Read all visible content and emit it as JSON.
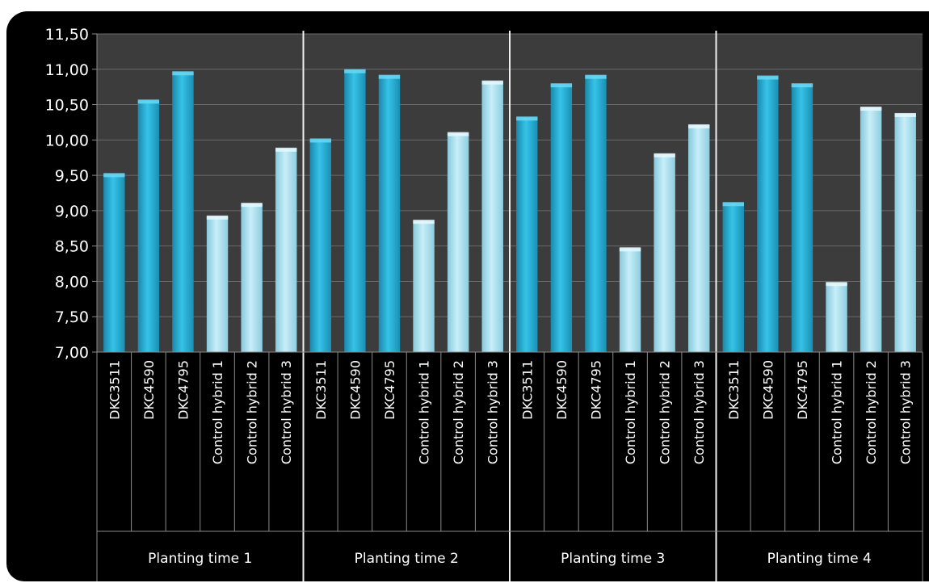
{
  "chart_data": {
    "type": "bar",
    "title": "",
    "xlabel": "",
    "ylabel": "",
    "ylim": [
      7.0,
      11.5
    ],
    "yticks": [
      "7,00",
      "7,50",
      "8,00",
      "8,50",
      "9,00",
      "9,50",
      "10,00",
      "10,50",
      "11,00",
      "11,50"
    ],
    "grid": true,
    "legend": "none",
    "colors": {
      "dkc": "#29b3d9",
      "control": "#a9dcea",
      "plot_bg": "#3c3c3c",
      "frame": "#000000",
      "grid": "#6a6a6a"
    },
    "groups": [
      {
        "label": "Planting time 1",
        "categories": [
          "DKC3511",
          "DKC4590",
          "DKC4795",
          "Control hybrid 1",
          "Control hybrid 2",
          "Control hybrid 3"
        ],
        "values": [
          9.52,
          10.56,
          10.96,
          8.92,
          9.1,
          9.88
        ]
      },
      {
        "label": "Planting time 2",
        "categories": [
          "DKC3511",
          "DKC4590",
          "DKC4795",
          "Control hybrid 1",
          "Control hybrid 2",
          "Control hybrid 3"
        ],
        "values": [
          10.01,
          10.99,
          10.91,
          8.86,
          10.1,
          10.83
        ]
      },
      {
        "label": "Planting time 3",
        "categories": [
          "DKC3511",
          "DKC4590",
          "DKC4795",
          "Control hybrid 1",
          "Control hybrid 2",
          "Control hybrid 3"
        ],
        "values": [
          10.32,
          10.79,
          10.91,
          8.47,
          9.8,
          10.21
        ]
      },
      {
        "label": "Planting time 4",
        "categories": [
          "DKC3511",
          "DKC4590",
          "DKC4795",
          "Control hybrid 1",
          "Control hybrid 2",
          "Control hybrid 3"
        ],
        "values": [
          9.11,
          10.9,
          10.79,
          7.98,
          10.46,
          10.37
        ]
      }
    ]
  }
}
